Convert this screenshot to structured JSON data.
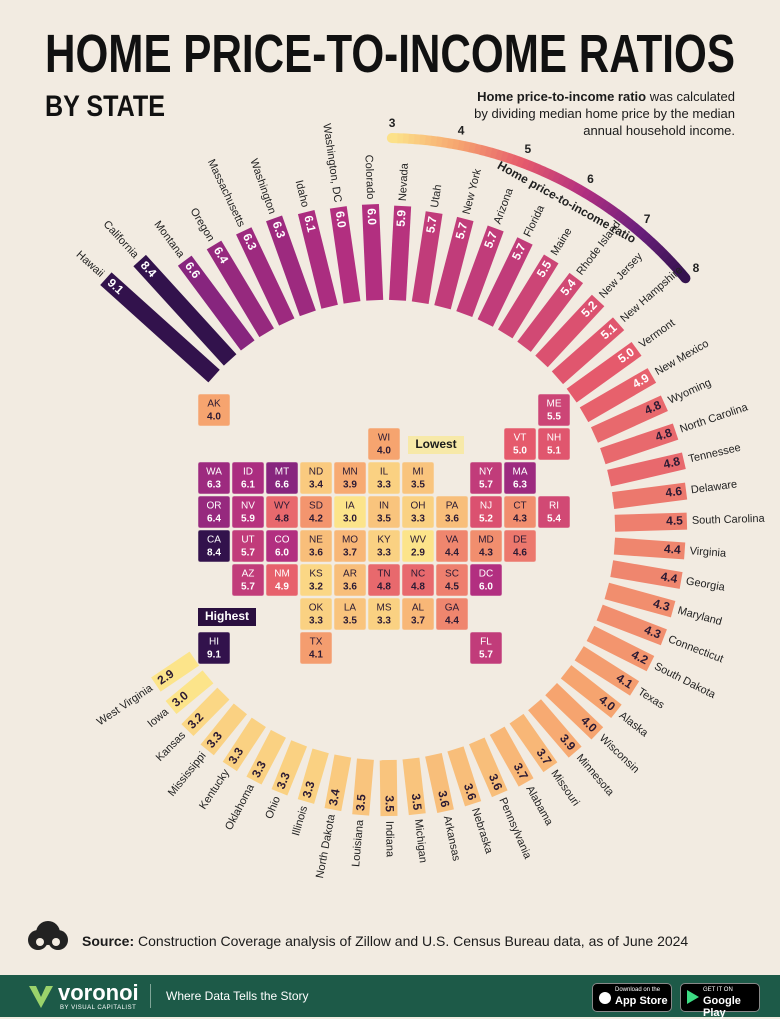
{
  "chart_data": {
    "type": "radial-bar",
    "title": "HOME PRICE-TO-INCOME RATIOS",
    "subtitle": "BY STATE",
    "note_bold": "Home price-to-income ratio",
    "note": "was calculated by dividing median home price by the median annual household income.",
    "categories": [
      "Hawaii",
      "California",
      "Montana",
      "Oregon",
      "Massachusetts",
      "Washington",
      "Idaho",
      "Washington, DC",
      "Colorado",
      "Nevada",
      "Utah",
      "New York",
      "Arizona",
      "Florida",
      "Maine",
      "Rhode Island",
      "New Jersey",
      "New Hampshire",
      "Vermont",
      "New Mexico",
      "Wyoming",
      "North Carolina",
      "Tennessee",
      "Delaware",
      "South Carolina",
      "Virginia",
      "Georgia",
      "Maryland",
      "Connecticut",
      "South Dakota",
      "Texas",
      "Alaska",
      "Wisconsin",
      "Minnesota",
      "Missouri",
      "Alabama",
      "Pennsylvania",
      "Nebraska",
      "Arkansas",
      "Michigan",
      "Indiana",
      "Louisiana",
      "North Dakota",
      "Illinois",
      "Ohio",
      "Oklahoma",
      "Kentucky",
      "Mississippi",
      "Kansas",
      "Iowa",
      "West Virginia"
    ],
    "abbreviations": [
      "HI",
      "CA",
      "MT",
      "OR",
      "MA",
      "WA",
      "ID",
      "DC",
      "CO",
      "NV",
      "UT",
      "NY",
      "AZ",
      "FL",
      "ME",
      "RI",
      "NJ",
      "NH",
      "VT",
      "NM",
      "WY",
      "NC",
      "TN",
      "DE",
      "SC",
      "VA",
      "GA",
      "MD",
      "CT",
      "SD",
      "TX",
      "AK",
      "WI",
      "MN",
      "MO",
      "AL",
      "PA",
      "NE",
      "AR",
      "MI",
      "IN",
      "LA",
      "ND",
      "IL",
      "OH",
      "OK",
      "KY",
      "MS",
      "KS",
      "IA",
      "WV"
    ],
    "values": [
      9.1,
      8.4,
      6.6,
      6.4,
      6.3,
      6.3,
      6.1,
      6.0,
      6.0,
      5.9,
      5.7,
      5.7,
      5.7,
      5.7,
      5.5,
      5.4,
      5.2,
      5.1,
      5.0,
      4.9,
      4.8,
      4.8,
      4.8,
      4.6,
      4.5,
      4.4,
      4.4,
      4.3,
      4.3,
      4.2,
      4.1,
      4.0,
      4.0,
      3.9,
      3.7,
      3.7,
      3.6,
      3.6,
      3.6,
      3.5,
      3.5,
      3.5,
      3.4,
      3.3,
      3.3,
      3.3,
      3.3,
      3.3,
      3.2,
      3.0,
      2.9
    ],
    "value_labels": [
      "9.1",
      "8.4",
      "6.6",
      "6.4",
      "6.3",
      "6.3",
      "6.1",
      "6.0",
      "6.0",
      "5.9",
      "5.7",
      "5.7",
      "5.7",
      "5.7",
      "5.5",
      "5.4",
      "5.2",
      "5.1",
      "5.0",
      "4.9",
      "4.8",
      "4.8",
      "4.8",
      "4.6",
      "4.5",
      "4.4",
      "4.4",
      "4.3",
      "4.3",
      "4.2",
      "4.1",
      "4.0",
      "4.0",
      "3.9",
      "3.7",
      "3.7",
      "3.6",
      "3.6",
      "3.6",
      "3.5",
      "3.5",
      "3.5",
      "3.4",
      "3.3",
      "3.3",
      "3.3",
      "3.3",
      "3.3",
      "3.2",
      "3.0",
      "2.9"
    ],
    "colorbar": {
      "title": "Home price-to-income ratio",
      "ticks": [
        3,
        4,
        5,
        6,
        7,
        8
      ],
      "colors": [
        "#fce48a",
        "#f6a46f",
        "#e55a6c",
        "#b22f80",
        "#6b1f7c",
        "#32124c"
      ]
    },
    "annotations": {
      "highest": "Highest",
      "lowest": "Lowest"
    },
    "source_label": "Source:",
    "source": "Construction Coverage analysis of Zillow and U.S. Census Bureau data, as of June 2024"
  },
  "footer": {
    "brand": "voronoi",
    "byline": "BY VISUAL CAPITALIST",
    "tagline": "Where Data Tells the Story",
    "app_store": [
      "Download on the",
      "App Store"
    ],
    "google_play": [
      "GET IT ON",
      "Google Play"
    ]
  }
}
